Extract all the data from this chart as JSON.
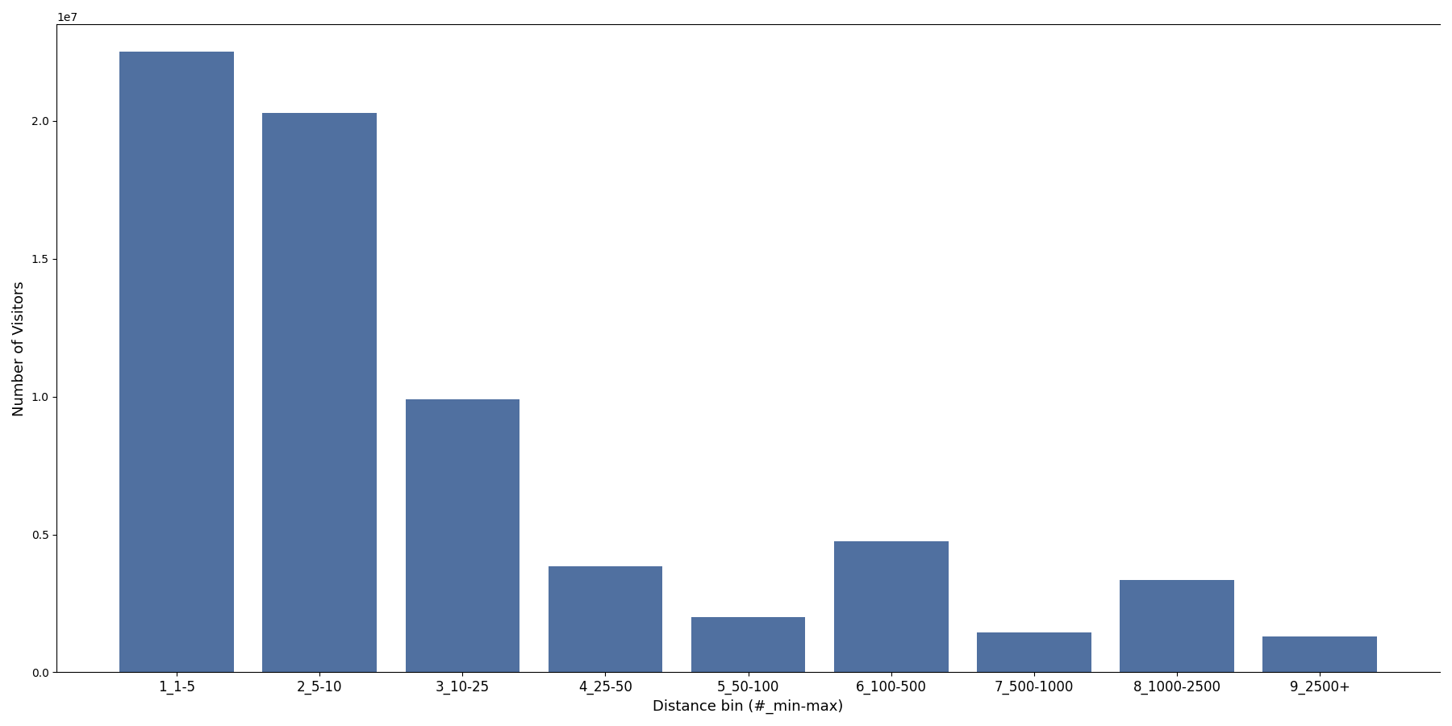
{
  "categories": [
    "1_1-5",
    "2_5-10",
    "3_10-25",
    "4_25-50",
    "5_50-100",
    "6_100-500",
    "7_500-1000",
    "8_1000-2500",
    "9_2500+"
  ],
  "values": [
    22500000,
    20300000,
    9900000,
    3850000,
    2000000,
    4750000,
    1450000,
    3350000,
    1300000
  ],
  "bar_color": "#5070a0",
  "xlabel": "Distance bin (#_min-max)",
  "ylabel": "Number of Visitors",
  "ylim": [
    0,
    23500000
  ],
  "yticks": [
    0,
    5000000,
    10000000,
    15000000,
    20000000
  ],
  "figsize": [
    18.0,
    9.0
  ],
  "dpi": 100
}
